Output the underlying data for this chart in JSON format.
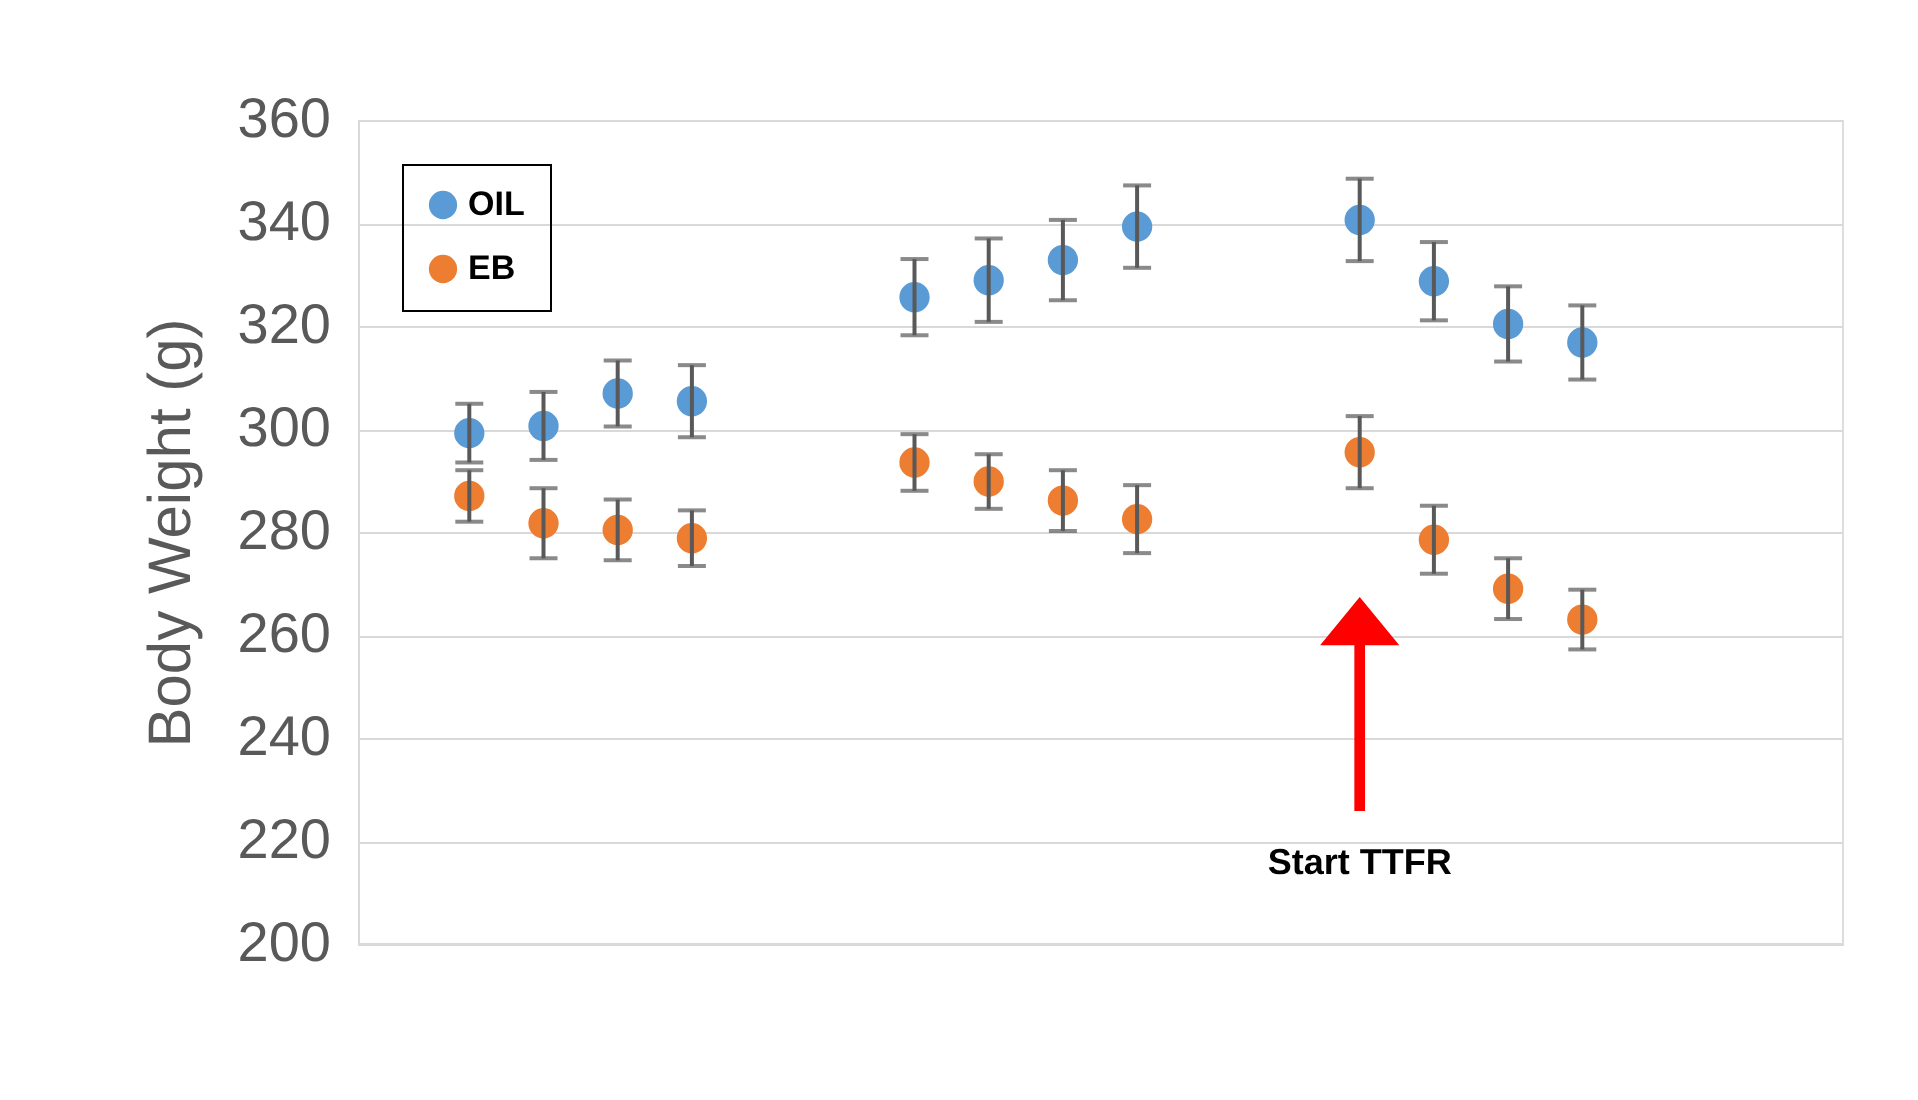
{
  "chart_data": {
    "type": "scatter",
    "ylabel": "Body Weight (g)",
    "categories": [
      null,
      null,
      null,
      null,
      null,
      null,
      null,
      null,
      null,
      null,
      null,
      null,
      null,
      null,
      null,
      null,
      null,
      null,
      null,
      null
    ],
    "series": [
      {
        "name": "OIL",
        "color": "#5b9bd5",
        "values": [
          null,
          299.2,
          300.6,
          306.9,
          305.4,
          null,
          null,
          325.6,
          328.9,
          332.8,
          339.3,
          null,
          null,
          340.6,
          328.7,
          320.4,
          316.8,
          null,
          null,
          null
        ],
        "errors": [
          null,
          5.7,
          6.6,
          6.4,
          7,
          null,
          null,
          7.4,
          8.1,
          7.8,
          8,
          null,
          null,
          8,
          7.6,
          7.3,
          7.2,
          null,
          null,
          null
        ]
      },
      {
        "name": "EB",
        "color": "#ed7d31",
        "values": [
          null,
          287,
          281.7,
          280.4,
          278.8,
          null,
          null,
          293.5,
          289.8,
          286.1,
          282.5,
          null,
          null,
          295.5,
          278.5,
          269,
          263,
          null,
          null,
          null
        ],
        "errors": [
          null,
          5,
          6.8,
          5.9,
          5.4,
          null,
          null,
          5.5,
          5.3,
          5.9,
          6.6,
          null,
          null,
          7,
          6.6,
          5.9,
          5.8,
          null,
          null,
          null
        ]
      }
    ],
    "ylim": [
      200,
      360
    ],
    "yticks": [
      200,
      220,
      240,
      260,
      280,
      300,
      320,
      340,
      360
    ],
    "grid": "y",
    "legend": "top left",
    "marker": "circle",
    "tick_labels": "y",
    "annotations": [
      "Start TTFR"
    ]
  }
}
